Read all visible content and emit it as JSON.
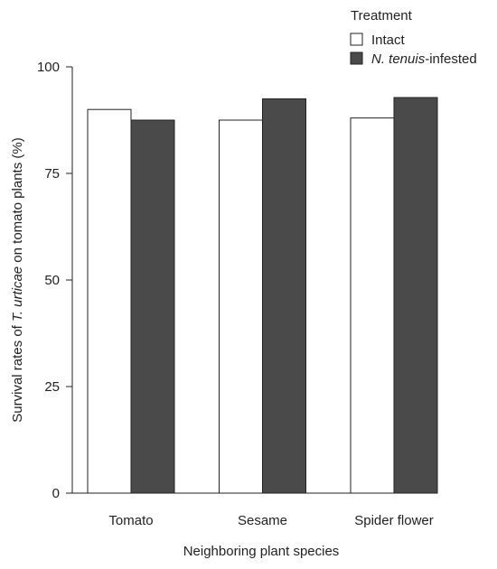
{
  "chart_data": {
    "type": "bar",
    "title": "",
    "xlabel": "Neighboring plant species",
    "ylabel": {
      "prefix": "Survival rates of ",
      "italic": "T. urticae",
      "suffix": " on tomato plants (%)"
    },
    "ylim": [
      0,
      100
    ],
    "yticks": [
      0,
      25,
      50,
      75,
      100
    ],
    "grid": false,
    "legend_position": "top-right",
    "legend_title": "Treatment",
    "categories": [
      "Tomato",
      "Sesame",
      "Spider flower"
    ],
    "series": [
      {
        "name": "Intact",
        "name_parts": {
          "italic": "",
          "suffix": "Intact"
        },
        "color": "#ffffff",
        "values": [
          90,
          87.5,
          88
        ]
      },
      {
        "name": "N. tenuis-infested",
        "name_parts": {
          "italic": "N. tenuis",
          "suffix": "-infested"
        },
        "color": "#4a4a4a",
        "values": [
          87.5,
          92.5,
          92.8
        ]
      }
    ]
  }
}
